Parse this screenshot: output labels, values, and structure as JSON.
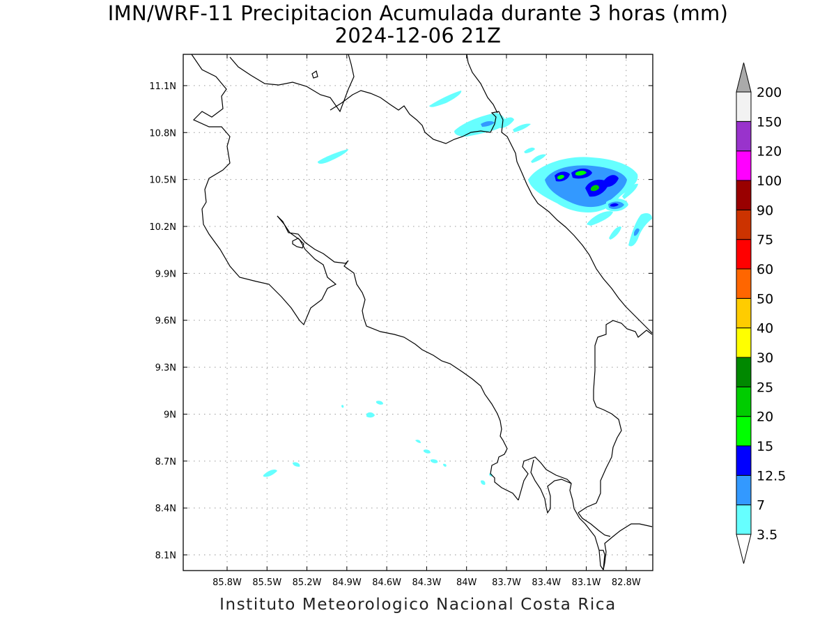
{
  "title": {
    "line1": "IMN/WRF-11 Precipitacion Acumulada durante 3 horas (mm)",
    "line2": "2024-12-06 21Z"
  },
  "footer": "Instituto Meteorologico Nacional Costa Rica",
  "map": {
    "lon_range": [
      -86.13,
      -82.6
    ],
    "lat_range": [
      8.0,
      11.3
    ],
    "lon_ticks": [
      {
        "value": -85.8,
        "label": "85.8W"
      },
      {
        "value": -85.5,
        "label": "85.5W"
      },
      {
        "value": -85.2,
        "label": "85.2W"
      },
      {
        "value": -84.9,
        "label": "84.9W"
      },
      {
        "value": -84.6,
        "label": "84.6W"
      },
      {
        "value": -84.3,
        "label": "84.3W"
      },
      {
        "value": -84.0,
        "label": "84W"
      },
      {
        "value": -83.7,
        "label": "83.7W"
      },
      {
        "value": -83.4,
        "label": "83.4W"
      },
      {
        "value": -83.1,
        "label": "83.1W"
      },
      {
        "value": -82.8,
        "label": "82.8W"
      }
    ],
    "lat_ticks": [
      {
        "value": 11.1,
        "label": "11.1N"
      },
      {
        "value": 10.8,
        "label": "10.8N"
      },
      {
        "value": 10.5,
        "label": "10.5N"
      },
      {
        "value": 10.2,
        "label": "10.2N"
      },
      {
        "value": 9.9,
        "label": "9.9N"
      },
      {
        "value": 9.6,
        "label": "9.6N"
      },
      {
        "value": 9.3,
        "label": "9.3N"
      },
      {
        "value": 9.0,
        "label": "9N"
      },
      {
        "value": 8.7,
        "label": "8.7N"
      },
      {
        "value": 8.4,
        "label": "8.4N"
      },
      {
        "value": 8.1,
        "label": "8.1N"
      }
    ],
    "grid_lines": "dotted",
    "precip_cells": [
      {
        "lon": -83.42,
        "lat": 10.52,
        "level": "7"
      },
      {
        "lon": -83.25,
        "lat": 10.5,
        "level": "7"
      },
      {
        "lon": -83.1,
        "lat": 10.5,
        "level": "7"
      },
      {
        "lon": -82.95,
        "lat": 10.44,
        "level": "12.5"
      },
      {
        "lon": -83.02,
        "lat": 10.54,
        "level": "15"
      },
      {
        "lon": -82.92,
        "lat": 10.45,
        "level": "20"
      },
      {
        "lon": -82.83,
        "lat": 10.34,
        "level": "7"
      },
      {
        "lon": -82.66,
        "lat": 10.22,
        "level": "7"
      },
      {
        "lon": -83.78,
        "lat": 10.84,
        "level": "3.5"
      },
      {
        "lon": -84.05,
        "lat": 11.06,
        "level": "3.5"
      },
      {
        "lon": -84.8,
        "lat": 10.64,
        "level": "3.5"
      },
      {
        "lon": -84.6,
        "lat": 9.0,
        "level": "3.5"
      },
      {
        "lon": -84.15,
        "lat": 8.7,
        "level": "3.5"
      },
      {
        "lon": -85.25,
        "lat": 8.63,
        "level": "3.5"
      }
    ]
  },
  "colorbar": {
    "levels": [
      {
        "label": "3.5",
        "color": "#66ffff"
      },
      {
        "label": "7",
        "color": "#3399ff"
      },
      {
        "label": "12.5",
        "color": "#0000ff"
      },
      {
        "label": "15",
        "color": "#00ff00"
      },
      {
        "label": "20",
        "color": "#00cc00"
      },
      {
        "label": "25",
        "color": "#008800"
      },
      {
        "label": "30",
        "color": "#ffff00"
      },
      {
        "label": "40",
        "color": "#ffcc00"
      },
      {
        "label": "50",
        "color": "#ff6600"
      },
      {
        "label": "60",
        "color": "#ff0000"
      },
      {
        "label": "75",
        "color": "#cc3300"
      },
      {
        "label": "90",
        "color": "#990000"
      },
      {
        "label": "100",
        "color": "#ff00ff"
      },
      {
        "label": "120",
        "color": "#9933cc"
      },
      {
        "label": "150",
        "color": "#f2f2f2"
      },
      {
        "label": "200",
        "color": "#aaaaaa"
      }
    ]
  }
}
